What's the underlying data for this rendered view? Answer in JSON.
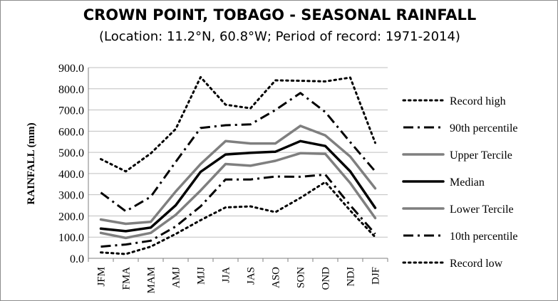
{
  "chart_data": {
    "type": "line",
    "title": "CROWN POINT, TOBAGO - SEASONAL RAINFALL",
    "subtitle": "(Location: 11.2°N, 60.8°W; Period of record: 1971-2014)",
    "ylabel": "RAINFALL (mm)",
    "xlabel": "",
    "ylim": [
      0,
      900
    ],
    "yticks": [
      "0.0",
      "100.0",
      "200.0",
      "300.0",
      "400.0",
      "500.0",
      "600.0",
      "700.0",
      "800.0",
      "900.0"
    ],
    "categories": [
      "JFM",
      "FMA",
      "MAM",
      "AMJ",
      "MJJ",
      "JJA",
      "JAS",
      "ASO",
      "SON",
      "OND",
      "NDJ",
      "DJF"
    ],
    "legend_position": "right",
    "grid": "horizontal",
    "series": [
      {
        "name": "Record high",
        "style": "dotted",
        "color": "#000000",
        "values": [
          468,
          410,
          495,
          610,
          855,
          725,
          708,
          840,
          838,
          835,
          853,
          545
        ]
      },
      {
        "name": "90th percentile",
        "style": "dash-dot",
        "color": "#000000",
        "values": [
          310,
          222,
          290,
          455,
          615,
          628,
          632,
          700,
          780,
          690,
          548,
          410
        ]
      },
      {
        "name": "Upper Tercile",
        "style": "solid-thick",
        "color": "#7f7f7f",
        "values": [
          183,
          163,
          172,
          315,
          445,
          553,
          542,
          542,
          625,
          580,
          480,
          330
        ]
      },
      {
        "name": "Median",
        "style": "solid-thick",
        "color": "#000000",
        "values": [
          140,
          128,
          145,
          250,
          408,
          490,
          498,
          503,
          553,
          530,
          410,
          238
        ]
      },
      {
        "name": "Lower Tercile",
        "style": "solid-thick",
        "color": "#7f7f7f",
        "values": [
          120,
          96,
          120,
          205,
          320,
          445,
          437,
          460,
          496,
          493,
          355,
          190
        ]
      },
      {
        "name": "10th percentile",
        "style": "dash-dot",
        "color": "#000000",
        "values": [
          55,
          65,
          83,
          150,
          245,
          372,
          372,
          386,
          385,
          395,
          250,
          115
        ]
      },
      {
        "name": "Record low",
        "style": "dotted",
        "color": "#000000",
        "values": [
          28,
          20,
          55,
          115,
          180,
          240,
          245,
          218,
          285,
          360,
          225,
          100
        ]
      }
    ]
  }
}
